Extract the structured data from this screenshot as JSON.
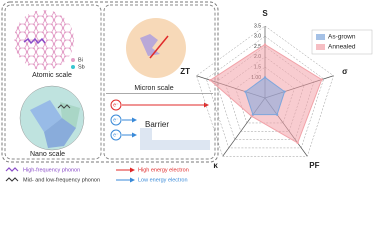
{
  "panels": {
    "atomic": {
      "title": "Atomic scale",
      "legend": [
        "Bi",
        "Sb"
      ]
    },
    "nano": {
      "title": "Nano scale"
    },
    "micron": {
      "title": "Micron scale"
    },
    "barrier": {
      "electrons": [
        "e⁻",
        "e⁻",
        "e⁻"
      ],
      "label": "Barrier"
    },
    "legend": [
      "High-frequency phonon",
      "Mid- and low-frequency phonon",
      "High energy electron",
      "Low energy electron"
    ]
  },
  "chart_data": {
    "type": "radar",
    "categories": [
      "S",
      "σ",
      "PF",
      "κ",
      "ZT"
    ],
    "series": [
      {
        "name": "As-grown",
        "color": "#7fa6dc",
        "values": [
          1,
          1,
          1,
          1,
          1
        ]
      },
      {
        "name": "Annealed",
        "color": "#f2a3a9",
        "values": [
          2.6,
          2.9,
          2.7,
          1.1,
          2.8
        ]
      }
    ],
    "ylim": [
      0,
      3.5
    ],
    "yticks": [
      {
        "value": 1,
        "label": "1.00"
      },
      1.5,
      {
        "value": 2,
        "label": "2.0"
      },
      2.5,
      {
        "value": 3,
        "label": "3.0"
      },
      3.5
    ],
    "legend": "top-right",
    "grid": true
  }
}
